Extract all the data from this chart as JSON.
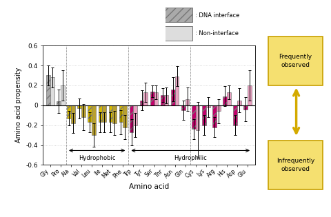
{
  "amino_acids": [
    "Gly",
    "Pro",
    "Ala",
    "Val",
    "Leu",
    "Ile",
    "Met",
    "Phe",
    "Trp",
    "Tyr",
    "Ser",
    "Thr",
    "Asn",
    "Gln",
    "Cys",
    "Lys",
    "Arg",
    "His",
    "Asp",
    "Glu"
  ],
  "dna_values": [
    0.3,
    0.04,
    -0.13,
    -0.03,
    -0.17,
    -0.17,
    -0.17,
    -0.17,
    -0.27,
    0.05,
    0.14,
    0.1,
    0.16,
    -0.05,
    -0.24,
    -0.2,
    -0.22,
    0.09,
    -0.2,
    -0.04
  ],
  "non_values": [
    0.28,
    0.2,
    -0.18,
    -0.12,
    -0.3,
    -0.17,
    -0.18,
    -0.22,
    -0.2,
    0.13,
    0.13,
    0.1,
    0.29,
    0.06,
    -0.25,
    -0.02,
    -0.06,
    0.13,
    0.05,
    0.2
  ],
  "dna_err": [
    0.1,
    0.12,
    0.07,
    0.1,
    0.1,
    0.1,
    0.1,
    0.12,
    0.13,
    0.1,
    0.06,
    0.07,
    0.12,
    0.1,
    0.1,
    0.1,
    0.1,
    0.1,
    0.1,
    0.12
  ],
  "non_err": [
    0.1,
    0.15,
    0.1,
    0.13,
    0.12,
    0.1,
    0.12,
    0.12,
    0.12,
    0.1,
    0.07,
    0.08,
    0.1,
    0.12,
    0.28,
    0.1,
    0.12,
    0.07,
    0.12,
    0.15
  ],
  "ylim": [
    -0.6,
    0.6
  ],
  "yticks": [
    -0.6,
    -0.4,
    -0.2,
    0.0,
    0.2,
    0.4,
    0.6
  ],
  "ylabel": "Amino acid propensity",
  "xlabel": "Amino acid",
  "grid_color": "#cccccc",
  "bar_width": 0.38,
  "dna_color_gly_pro": "#aaaaaa",
  "non_color_gly_pro": "#dddddd",
  "dna_color_hydrophobic": "#d4b800",
  "non_color_hydrophobic": "#b8a030",
  "dna_color_hydrophilic": "#c0006a",
  "non_color_hydrophilic": "#e8a0c0",
  "arrow_color": "#d4aa00",
  "box_color": "#f5e070",
  "box_edge_color": "#c8a000",
  "frequently_text": "Frequently\nobserved",
  "infrequently_text": "Infrequently\nobserved"
}
